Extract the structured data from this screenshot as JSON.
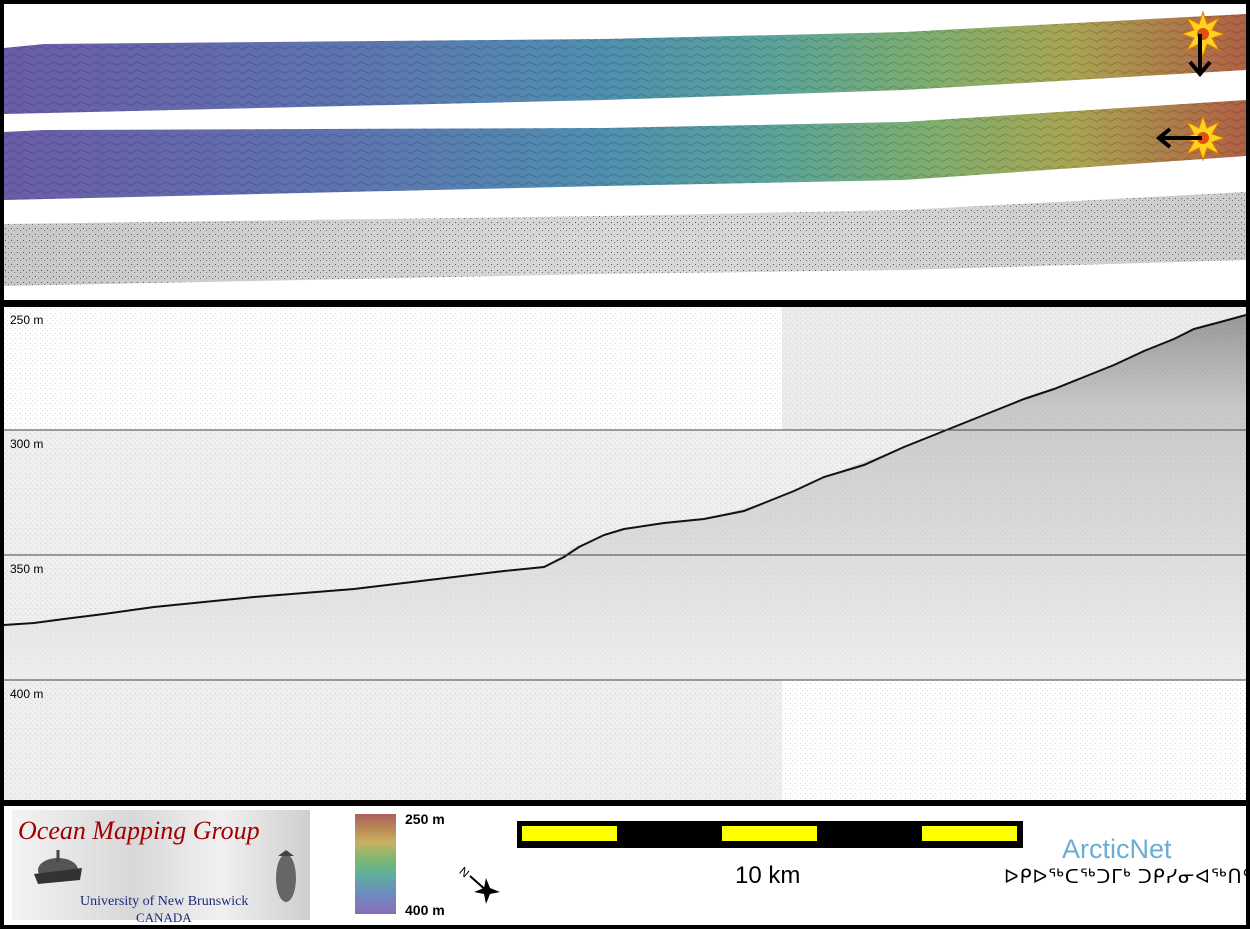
{
  "profile": {
    "depth_labels": [
      "250 m",
      "300 m",
      "350 m",
      "400 m"
    ]
  },
  "colorbar": {
    "top_label": "250 m",
    "bottom_label": "400 m"
  },
  "scale": {
    "label": "10 km",
    "bar_colors": [
      "#000000",
      "#ffff00"
    ]
  },
  "logos": {
    "omg_title": "Ocean Mapping Group",
    "omg_university": "University of New Brunswick",
    "omg_country": "CANADA",
    "arcticnet_title": "ArcticNet",
    "arcticnet_subtitle": "ᐅᑭᐅᖅᑕᖅᑐᒥᒃ ᑐᑭᓯᓂᐊᖅᑎᑦ"
  },
  "icons": {
    "sun": "sun-icon",
    "arrow_down": "arrow-down-icon",
    "arrow_left": "arrow-left-icon",
    "north_arrow": "north-arrow-icon"
  },
  "colors": {
    "accent_scale": "#ffff00",
    "omg_red": "#a00000",
    "arcticnet_blue": "#6aaed6"
  }
}
